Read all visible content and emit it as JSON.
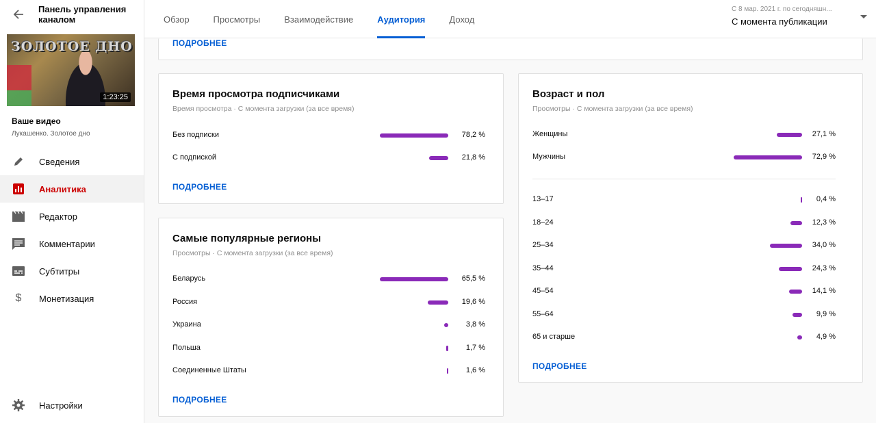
{
  "sidebar": {
    "title": "Панель управления каналом",
    "video_duration": "1:23:25",
    "thumb_text": "ЗОЛОТОЕ ДНО",
    "your_video": "Ваше видео",
    "video_name": "Лукашенко. Золотое дно",
    "items": [
      {
        "label": "Сведения",
        "icon": "pencil-icon"
      },
      {
        "label": "Аналитика",
        "icon": "analytics-icon"
      },
      {
        "label": "Редактор",
        "icon": "clapper-icon"
      },
      {
        "label": "Комментарии",
        "icon": "comment-icon"
      },
      {
        "label": "Субтитры",
        "icon": "subtitles-icon"
      },
      {
        "label": "Монетизация",
        "icon": "dollar-icon"
      }
    ],
    "settings": "Настройки"
  },
  "tabs": [
    "Обзор",
    "Просмотры",
    "Взаимодействие",
    "Аудитория",
    "Доход"
  ],
  "active_tab": 3,
  "period": {
    "sub": "С 8 мар. 2021 г. по сегодняшн...",
    "main": "С момента публикации"
  },
  "top_card": {
    "more": "ПОДРОБНЕЕ"
  },
  "watch_time_card": {
    "title": "Время просмотра подписчиками",
    "meta": "Время просмотра · С момента загрузки (за все время)",
    "rows": [
      {
        "label": "Без подписки",
        "pct": "78,2 %",
        "value": 78.2
      },
      {
        "label": "С подпиской",
        "pct": "21,8 %",
        "value": 21.8
      }
    ],
    "more": "ПОДРОБНЕЕ"
  },
  "regions_card": {
    "title": "Самые популярные регионы",
    "meta": "Просмотры · С момента загрузки (за все время)",
    "rows": [
      {
        "label": "Беларусь",
        "pct": "65,5 %",
        "value": 65.5
      },
      {
        "label": "Россия",
        "pct": "19,6 %",
        "value": 19.6
      },
      {
        "label": "Украина",
        "pct": "3,8 %",
        "value": 3.8
      },
      {
        "label": "Польша",
        "pct": "1,7 %",
        "value": 1.7
      },
      {
        "label": "Соединенные Штаты",
        "pct": "1,6 %",
        "value": 1.6
      }
    ],
    "more": "ПОДРОБНЕЕ"
  },
  "age_gender_card": {
    "title": "Возраст и пол",
    "meta": "Просмотры · С момента загрузки (за все время)",
    "gender": [
      {
        "label": "Женщины",
        "pct": "27,1 %",
        "value": 27.1
      },
      {
        "label": "Мужчины",
        "pct": "72,9 %",
        "value": 72.9
      }
    ],
    "ages": [
      {
        "label": "13–17",
        "pct": "0,4 %",
        "value": 0.4
      },
      {
        "label": "18–24",
        "pct": "12,3 %",
        "value": 12.3
      },
      {
        "label": "25–34",
        "pct": "34,0 %",
        "value": 34.0
      },
      {
        "label": "35–44",
        "pct": "24,3 %",
        "value": 24.3
      },
      {
        "label": "45–54",
        "pct": "14,1 %",
        "value": 14.1
      },
      {
        "label": "55–64",
        "pct": "9,9 %",
        "value": 9.9
      },
      {
        "label": "65 и старше",
        "pct": "4,9 %",
        "value": 4.9
      }
    ],
    "more": "ПОДРОБНЕЕ"
  },
  "colors": {
    "bar": "#8a2ab8",
    "accent": "#065fd4",
    "active_nav": "#cc0000"
  }
}
